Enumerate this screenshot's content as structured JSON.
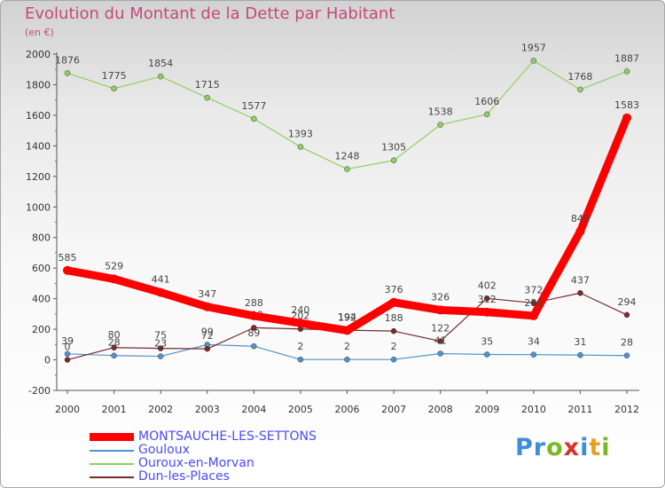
{
  "chart_data": {
    "type": "line",
    "title": "Evolution du Montant de la Dette par Habitant",
    "unit_label": "(en €)",
    "x": [
      "2000",
      "2001",
      "2002",
      "2003",
      "2004",
      "2005",
      "2006",
      "2007",
      "2008",
      "2009",
      "2010",
      "2011",
      "2012"
    ],
    "ylim": [
      -200,
      2000
    ],
    "yticks": [
      -200,
      0,
      200,
      400,
      600,
      800,
      1000,
      1200,
      1400,
      1600,
      1800,
      2000
    ],
    "grid": false,
    "legend_position": "bottom-left",
    "series": [
      {
        "name": "MONTSAUCHE-LES-SETTONS",
        "color": "#ff0000",
        "values": [
          585,
          529,
          441,
          347,
          288,
          240,
          192,
          376,
          326,
          312,
          288,
          840,
          1583
        ]
      },
      {
        "name": "Gouloux",
        "color": "#4f94cd",
        "values": [
          39,
          28,
          23,
          99,
          89,
          2,
          2,
          2,
          41,
          35,
          34,
          31,
          28
        ]
      },
      {
        "name": "Ouroux-en-Morvan",
        "color": "#90d060",
        "values": [
          1876,
          1775,
          1854,
          1715,
          1577,
          1393,
          1248,
          1305,
          1538,
          1606,
          1957,
          1768,
          1887
        ]
      },
      {
        "name": "Dun-les-Places",
        "color": "#7a2a2a",
        "values": [
          0,
          80,
          75,
          72,
          210,
          202,
          194,
          188,
          122,
          402,
          372,
          437,
          294
        ]
      }
    ]
  },
  "branding": {
    "logo": [
      "Pr",
      "o",
      "x",
      "i",
      "t",
      "i"
    ]
  }
}
